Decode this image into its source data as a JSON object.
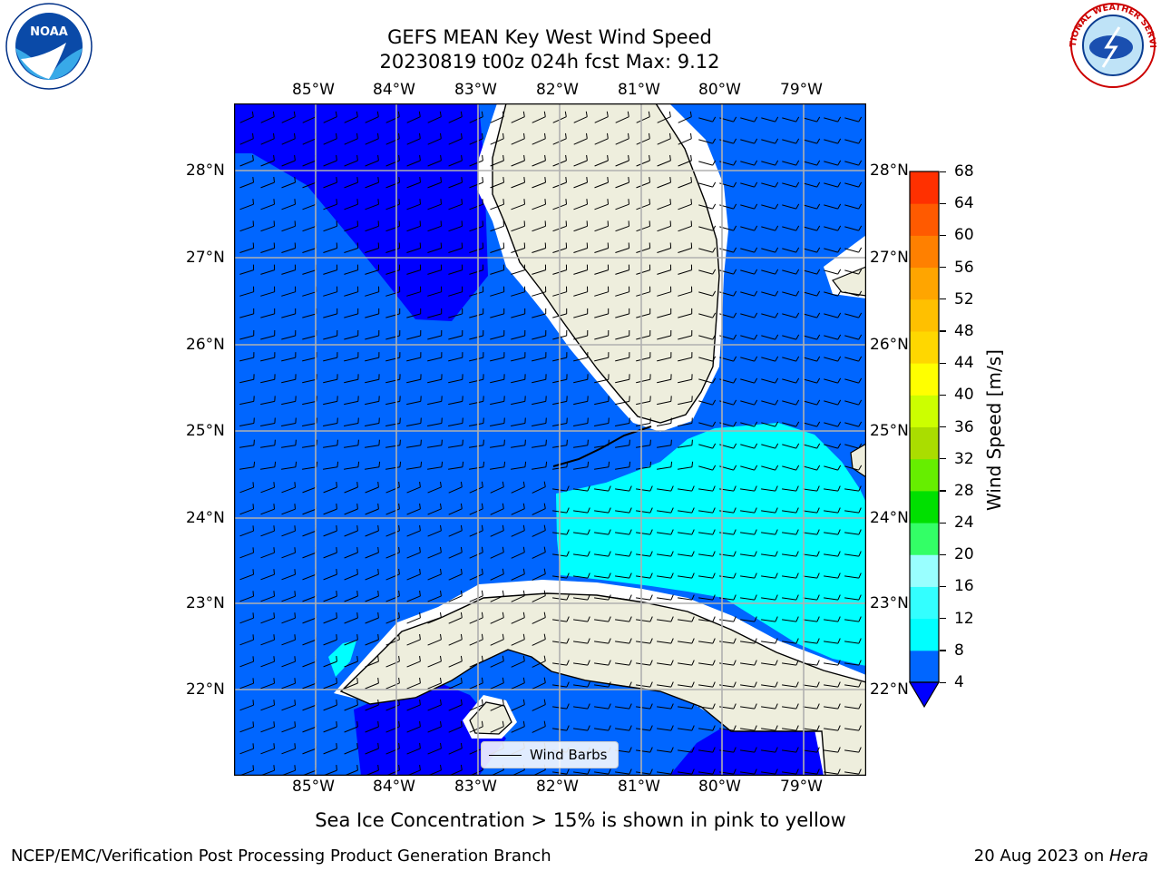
{
  "title_line1": "GEFS MEAN Key West Wind Speed",
  "title_line2": "20230819 t00z 024h fcst   Max: 9.12",
  "logos": {
    "left": "NOAA",
    "right": "NATIONAL WEATHER SERVICE"
  },
  "lon_labels": [
    "85°W",
    "84°W",
    "83°W",
    "82°W",
    "81°W",
    "80°W",
    "79°W"
  ],
  "lat_labels": [
    "28°N",
    "27°N",
    "26°N",
    "25°N",
    "24°N",
    "23°N",
    "22°N"
  ],
  "colorbar": {
    "label": "Wind Speed [m/s]",
    "ticks": [
      "4",
      "8",
      "12",
      "16",
      "20",
      "24",
      "28",
      "32",
      "36",
      "40",
      "44",
      "48",
      "52",
      "56",
      "60",
      "64",
      "68"
    ],
    "colors": [
      "#0066ff",
      "#00ffff",
      "#33ffff",
      "#99ffff",
      "#33ff66",
      "#00e000",
      "#66ee00",
      "#aadd00",
      "#ccff00",
      "#ffff00",
      "#ffd700",
      "#ffc000",
      "#ffa500",
      "#ff8000",
      "#ff5a00",
      "#ff3000"
    ],
    "extend_color": "#0000ff"
  },
  "map_colors": {
    "water_dark": "#0000ff",
    "water_mid": "#0066ff",
    "water_light": "#00ffff",
    "land": "#eeeedd"
  },
  "legend_label": "Wind Barbs",
  "sea_ice_note": "Sea Ice Concentration > 15% is shown in pink to yellow",
  "footer_left": "NCEP/EMC/Verification Post Processing Product Generation Branch",
  "footer_date": "20 Aug 2023 on ",
  "footer_host": "Hera"
}
